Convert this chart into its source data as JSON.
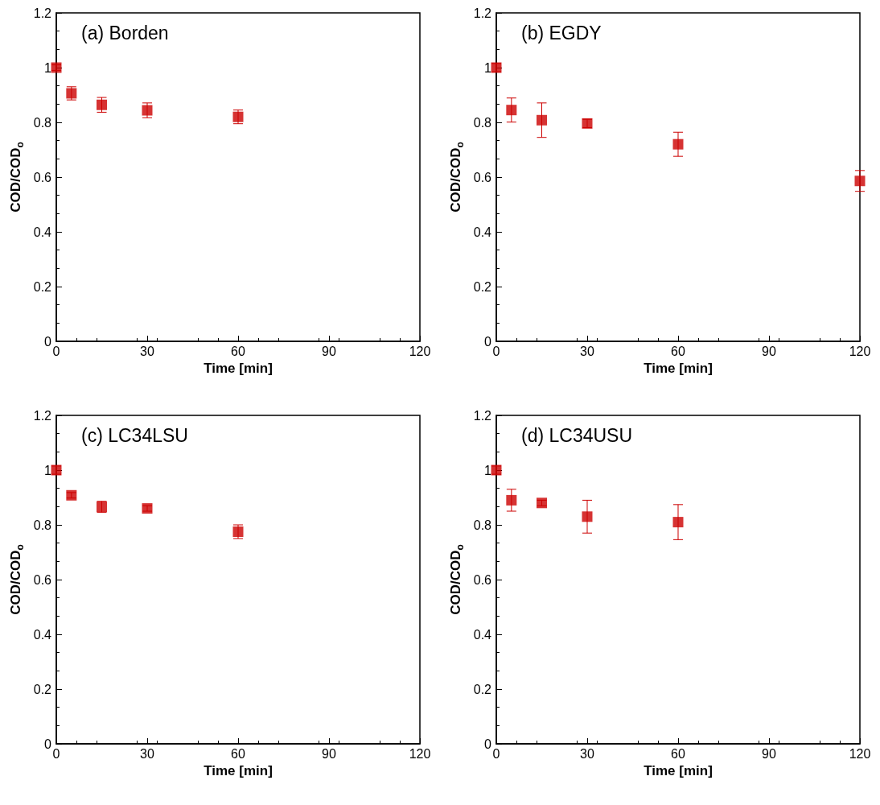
{
  "chart_data": [
    {
      "type": "scatter",
      "title": "(a) Borden",
      "xlabel": "Time [min]",
      "ylabel": "COD/COD$_{o}$",
      "x": [
        0,
        5,
        15,
        30,
        60
      ],
      "series": [
        {
          "color": "#cc0000",
          "values": [
            1.0,
            0.906,
            0.864,
            0.844,
            0.82
          ],
          "errors": [
            0.01,
            0.024,
            0.027,
            0.027,
            0.025
          ]
        }
      ],
      "xlim": [
        0,
        120
      ],
      "xticks": [
        0,
        30,
        60,
        90,
        120
      ],
      "ylim": [
        0,
        1.2
      ],
      "yticks": [
        0,
        0.2,
        0.4,
        0.6,
        0.8,
        1,
        1.2
      ],
      "grid": false,
      "marker": "square"
    },
    {
      "type": "scatter",
      "title": "(b) EGDY",
      "xlabel": "Time [min]",
      "ylabel": "COD/COD$_{o}$",
      "x": [
        0,
        5,
        15,
        30,
        60,
        120
      ],
      "series": [
        {
          "color": "#cc0000",
          "values": [
            1.0,
            0.845,
            0.808,
            0.796,
            0.72,
            0.586
          ],
          "errors": [
            0.015,
            0.044,
            0.063,
            0.015,
            0.044,
            0.038
          ]
        }
      ],
      "xlim": [
        0,
        120
      ],
      "xticks": [
        0,
        30,
        60,
        90,
        120
      ],
      "ylim": [
        0,
        1.2
      ],
      "yticks": [
        0,
        0.2,
        0.4,
        0.6,
        0.8,
        1,
        1.2
      ],
      "grid": false,
      "marker": "square"
    },
    {
      "type": "scatter",
      "title": "(c) LC34LSU",
      "xlabel": "Time [min]",
      "ylabel": "COD/COD$_{o}$",
      "x": [
        0,
        5,
        15,
        30,
        60
      ],
      "series": [
        {
          "color": "#cc0000",
          "values": [
            1.0,
            0.908,
            0.866,
            0.86,
            0.775
          ],
          "errors": [
            0.015,
            0.01,
            0.02,
            0.01,
            0.025
          ]
        }
      ],
      "xlim": [
        0,
        120
      ],
      "xticks": [
        0,
        30,
        60,
        90,
        120
      ],
      "ylim": [
        0,
        1.2
      ],
      "yticks": [
        0,
        0.2,
        0.4,
        0.6,
        0.8,
        1,
        1.2
      ],
      "grid": false,
      "marker": "square"
    },
    {
      "type": "scatter",
      "title": "(d) LC34USU",
      "xlabel": "Time [min]",
      "ylabel": "COD/COD$_{o}$",
      "x": [
        0,
        5,
        15,
        30,
        60
      ],
      "series": [
        {
          "color": "#cc0000",
          "values": [
            1.0,
            0.89,
            0.88,
            0.83,
            0.81
          ],
          "errors": [
            0.015,
            0.04,
            0.01,
            0.06,
            0.064
          ]
        }
      ],
      "xlim": [
        0,
        120
      ],
      "xticks": [
        0,
        30,
        60,
        90,
        120
      ],
      "ylim": [
        0,
        1.2
      ],
      "yticks": [
        0,
        0.2,
        0.4,
        0.6,
        0.8,
        1,
        1.2
      ],
      "grid": false,
      "marker": "square"
    }
  ]
}
